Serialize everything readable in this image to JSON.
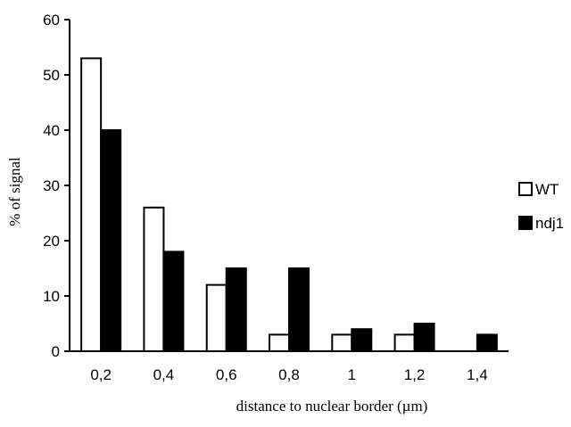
{
  "chart_data": {
    "type": "bar",
    "title": "",
    "xlabel": "distance to nuclear border (µm)",
    "ylabel": "% of signal",
    "categories": [
      "0,2",
      "0,4",
      "0,6",
      "0,8",
      "1",
      "1,2",
      "1,4"
    ],
    "ylim": [
      0,
      60
    ],
    "yticks": [
      "0",
      "10",
      "20",
      "30",
      "40",
      "50",
      "60"
    ],
    "grid": false,
    "legend_position": "right",
    "series": [
      {
        "name": "WT",
        "values": [
          53,
          26,
          12,
          3,
          3,
          3,
          0
        ],
        "fill": "#ffffff",
        "stroke": "#000000"
      },
      {
        "name": "ndj1",
        "values": [
          40,
          18,
          15,
          15,
          4,
          5,
          3
        ],
        "fill": "#000000",
        "stroke": "#000000"
      }
    ]
  }
}
